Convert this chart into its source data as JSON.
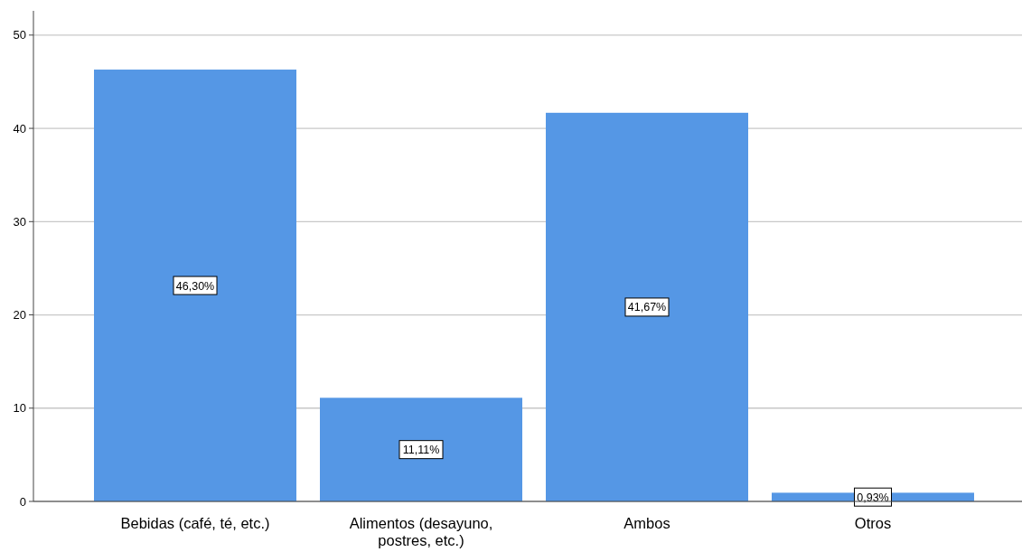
{
  "chart_data": {
    "type": "bar",
    "categories": [
      "Bebidas (café, té, etc.)",
      "Alimentos (desayuno, postres, etc.)",
      "Ambos",
      "Otros"
    ],
    "values": [
      46.3,
      11.11,
      41.67,
      0.93
    ],
    "value_labels": [
      "46,30%",
      "11,11%",
      "41,67%",
      "0,93%"
    ],
    "color": "#5597e5",
    "ylim": [
      0,
      52.6
    ],
    "yticks": [
      0,
      10,
      20,
      30,
      40,
      50
    ],
    "grid": "y"
  }
}
